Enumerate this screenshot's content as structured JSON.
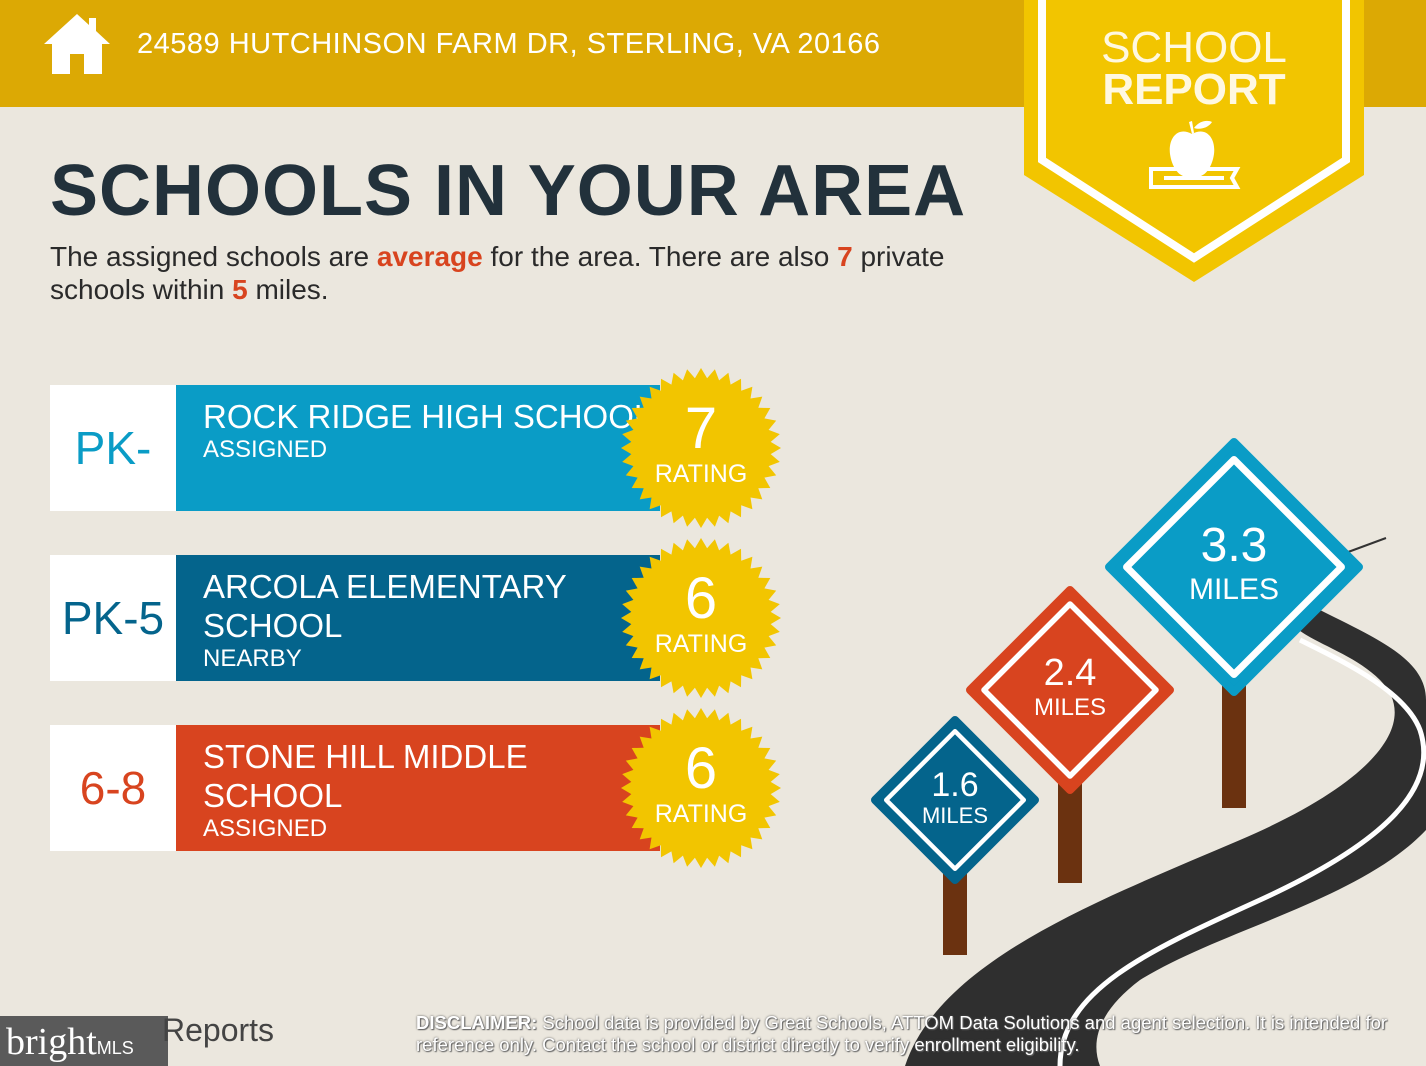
{
  "header": {
    "address": "24589 HUTCHINSON FARM DR, STERLING, VA 20166",
    "icon": "house-icon",
    "badge_line1": "SCHOOL",
    "badge_line2": "REPORT",
    "badge_icon": "apple-on-book-icon"
  },
  "title": "SCHOOLS IN YOUR AREA",
  "intro": {
    "p1": "The assigned schools are ",
    "quality": "average",
    "p2": " for the area. There are also ",
    "private_count": "7",
    "p3": " private schools within ",
    "radius": "5",
    "p4": " miles."
  },
  "schools": [
    {
      "grades": "PK-",
      "name": "ROCK RIDGE HIGH SCHOOL",
      "status": "ASSIGNED",
      "rating": "7",
      "rating_label": "RATING",
      "color": "#0a9cc6",
      "grade_color": "#0a9cc6"
    },
    {
      "grades": "PK-5",
      "name": "ARCOLA ELEMENTARY SCHOOL",
      "status": "NEARBY",
      "rating": "6",
      "rating_label": "RATING",
      "color": "#04648c",
      "grade_color": "#04648c"
    },
    {
      "grades": "6-8",
      "name": "STONE HILL MIDDLE SCHOOL",
      "status": "ASSIGNED",
      "rating": "6",
      "rating_label": "RATING",
      "color": "#d8441f",
      "grade_color": "#d8441f"
    }
  ],
  "distances": [
    {
      "value": "1.6",
      "unit": "MILES",
      "color": "#04648c"
    },
    {
      "value": "2.4",
      "unit": "MILES",
      "color": "#d8441f"
    },
    {
      "value": "3.3",
      "unit": "MILES",
      "color": "#0a9cc6"
    }
  ],
  "footer": {
    "brand": "bright",
    "brand_suffix": "MLS",
    "reports": "Reports",
    "disclaimer_label": "DISCLAIMER:",
    "disclaimer": " School data is provided by Great Schools, ATTOM Data Solutions and agent selection. It is intended for reference only. Contact the school or district directly to verify enrollment eligibility."
  },
  "colors": {
    "header": "#dca904",
    "badge": "#f2c500",
    "background": "#ebe7de",
    "starburst": "#f2c500"
  }
}
